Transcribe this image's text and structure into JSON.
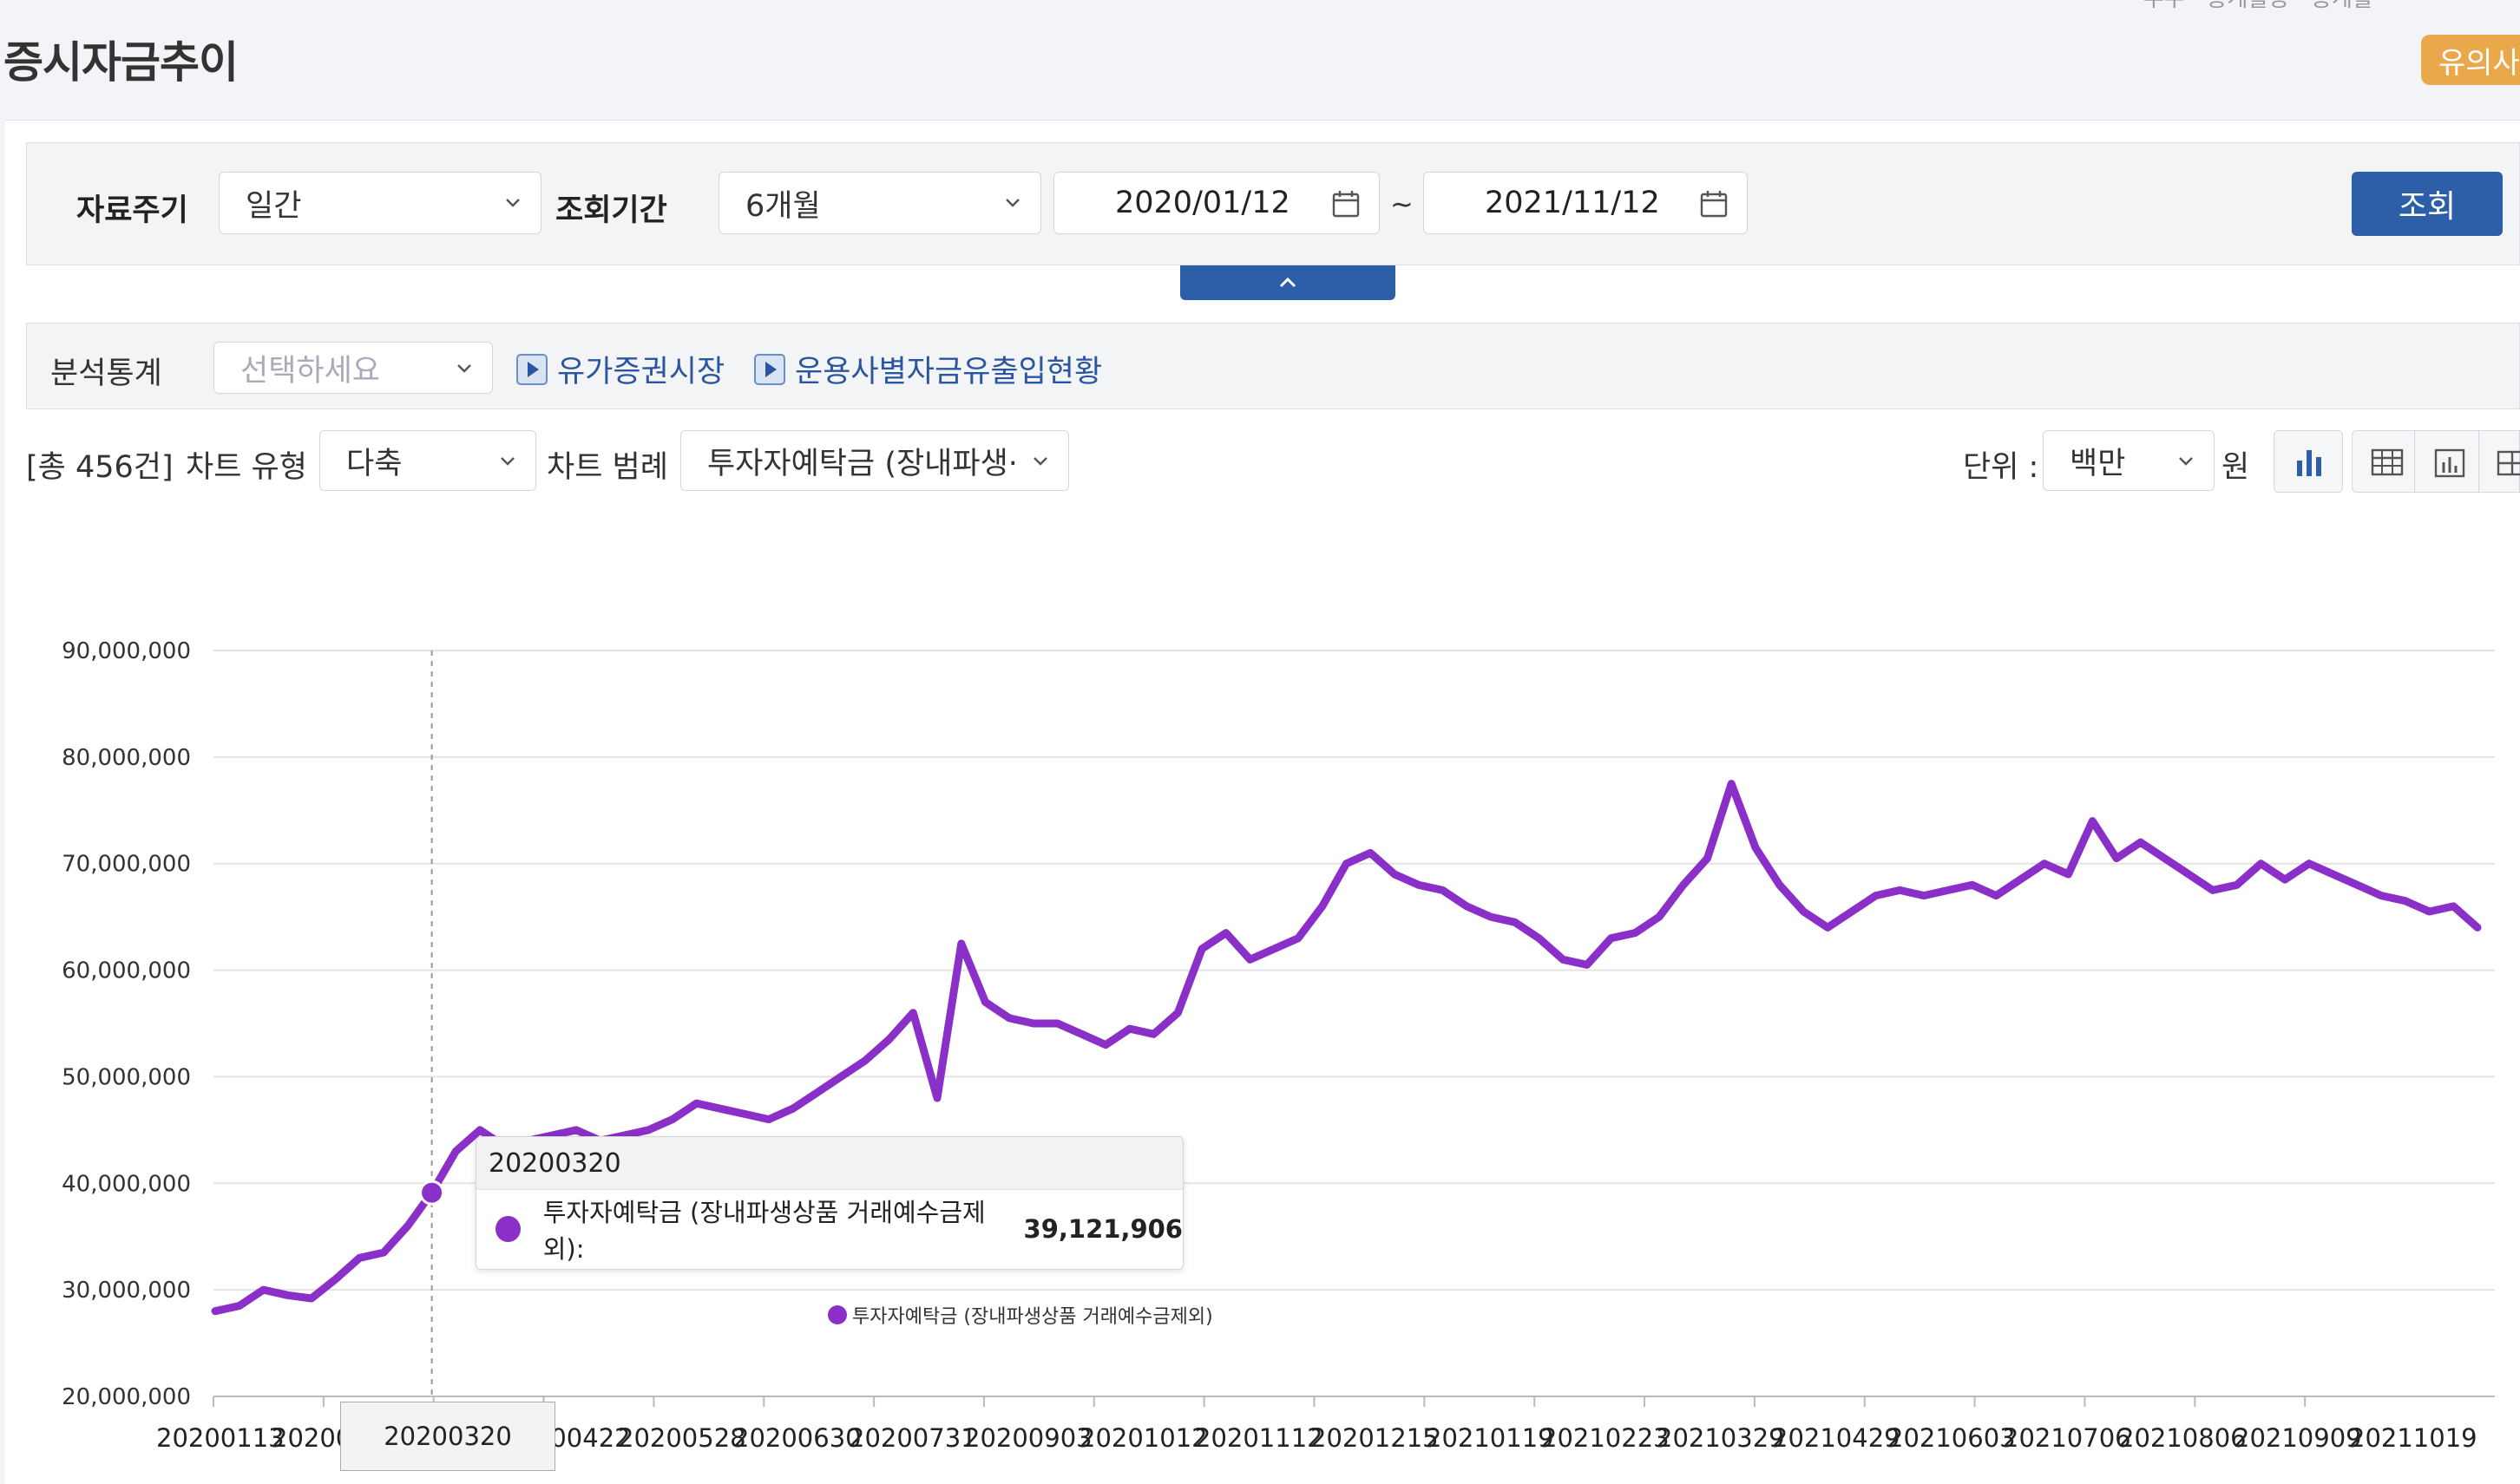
{
  "page": {
    "title": "증시자금추이",
    "notice_button": "유의사",
    "top_partial": "우수  · 통계활용  · 통계활"
  },
  "search": {
    "period_label": "자료주기",
    "period_value": "일간",
    "range_label": "조회기간",
    "range_value": "6개월",
    "start_date": "2020/01/12",
    "end_date": "2021/11/12",
    "tilde": "~",
    "query_button": "조회"
  },
  "analysis": {
    "label": "분석통계",
    "select_placeholder": "선택하세요",
    "link1": "유가증권시장",
    "link2": "운용사별자금유출입현황"
  },
  "toolbar": {
    "total_count": "[총 456건]",
    "chart_type_label": "차트 유형",
    "chart_type_value": "다축",
    "legend_label": "차트 범례",
    "legend_value": "투자자예탁금 (장내파생·",
    "unit_label": "단위 :",
    "unit_value": "백만",
    "unit_suffix": "원"
  },
  "tooltip": {
    "date": "20200320",
    "series_name": "투자자예탁금 (장내파생상품 거래예수금제외):",
    "value": "39,121,906"
  },
  "hover_x_label": "20200320",
  "colors": {
    "series": "#8a2fc7",
    "primary_button": "#2d5fa8",
    "notice": "#e9a94b"
  },
  "icons": [
    "chevron-down-icon",
    "calendar-icon",
    "chevron-up-icon",
    "play-icon",
    "bar-chart-icon",
    "table-icon",
    "column-chart-icon",
    "grid-icon"
  ],
  "chart_data": {
    "type": "line",
    "ylim": [
      20000000,
      90000000
    ],
    "yticks": [
      "20,000,000",
      "30,000,000",
      "40,000,000",
      "50,000,000",
      "60,000,000",
      "70,000,000",
      "80,000,000",
      "90,000,000"
    ],
    "xticks": [
      "20200113",
      "20200",
      "20200320",
      "20200422",
      "20200528",
      "20200630",
      "20200731",
      "20200903",
      "20201012",
      "20201112",
      "20201215",
      "20210119",
      "20210223",
      "20210329",
      "20210429",
      "20210603",
      "20210706",
      "20210806",
      "20210909",
      "20211019"
    ],
    "series": [
      {
        "name": "투자자예탁금 (장내파생상품 거래예수금제외)",
        "x": [
          "20200113",
          "20200120",
          "20200203",
          "20200210",
          "20200218",
          "20200225",
          "20200302",
          "20200309",
          "20200316",
          "20200320",
          "20200325",
          "20200330",
          "20200406",
          "20200413",
          "20200422",
          "20200429",
          "20200508",
          "20200515",
          "20200522",
          "20200528",
          "20200605",
          "20200612",
          "20200619",
          "20200630",
          "20200707",
          "20200715",
          "20200722",
          "20200731",
          "20200810",
          "20200818",
          "20200825",
          "20200903",
          "20200910",
          "20200917",
          "20200924",
          "20201005",
          "20201012",
          "20201019",
          "20201026",
          "20201102",
          "20201112",
          "20201119",
          "20201126",
          "20201203",
          "20201215",
          "20201222",
          "20201230",
          "20210107",
          "20210112",
          "20210119",
          "20210126",
          "20210202",
          "20210209",
          "20210216",
          "20210223",
          "20210302",
          "20210309",
          "20210316",
          "20210322",
          "20210329",
          "20210405",
          "20210412",
          "20210419",
          "20210423",
          "20210429",
          "20210506",
          "20210513",
          "20210520",
          "20210527",
          "20210603",
          "20210610",
          "20210617",
          "20210624",
          "20210630",
          "20210706",
          "20210713",
          "20210720",
          "20210727",
          "20210730",
          "20210806",
          "20210813",
          "20210820",
          "20210827",
          "20210902",
          "20210909",
          "20210916",
          "20210924",
          "20211001",
          "20211008",
          "20211013",
          "20211019",
          "20211026",
          "20211102",
          "20211108",
          "20211112"
        ],
        "values": [
          28000000,
          28500000,
          30000000,
          29500000,
          29200000,
          31000000,
          33000000,
          33500000,
          36000000,
          39121906,
          43000000,
          45000000,
          43500000,
          44000000,
          44500000,
          45000000,
          44000000,
          44500000,
          45000000,
          46000000,
          47500000,
          47000000,
          46500000,
          46000000,
          47000000,
          48500000,
          50000000,
          51500000,
          53500000,
          56000000,
          48000000,
          62500000,
          57000000,
          55500000,
          55000000,
          55000000,
          54000000,
          53000000,
          54500000,
          54000000,
          56000000,
          62000000,
          63500000,
          61000000,
          62000000,
          63000000,
          66000000,
          70000000,
          71000000,
          69000000,
          68000000,
          67500000,
          66000000,
          65000000,
          64500000,
          63000000,
          61000000,
          60500000,
          63000000,
          63500000,
          65000000,
          68000000,
          70500000,
          77500000,
          71500000,
          68000000,
          65500000,
          64000000,
          65500000,
          67000000,
          67500000,
          67000000,
          67500000,
          68000000,
          67000000,
          68500000,
          70000000,
          69000000,
          74000000,
          70500000,
          72000000,
          70500000,
          69000000,
          67500000,
          68000000,
          70000000,
          68500000,
          70000000,
          69000000,
          68000000,
          67000000,
          66500000,
          65500000,
          66000000,
          64000000
        ]
      }
    ],
    "legend": "bottom-center",
    "grid": true
  }
}
